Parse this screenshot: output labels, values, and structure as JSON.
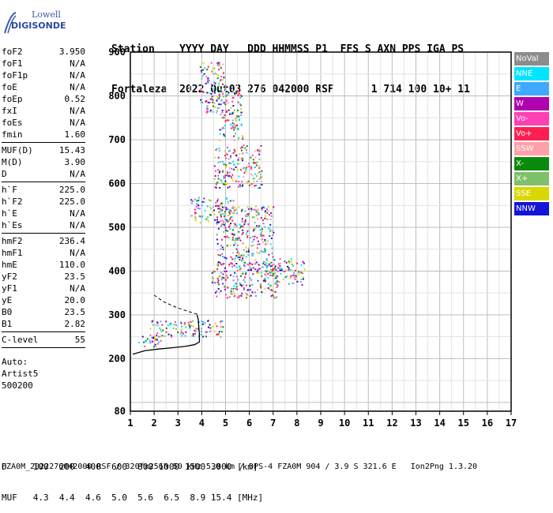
{
  "logo": {
    "line1": "Lowell",
    "line2": "DIGISONDE"
  },
  "header": {
    "line1": "Station    YYYY DAY   DDD HHMMSS P1  FFS S AXN PPS IGA PS",
    "line2": "Fortaleza  2022 Out03 276 042000 RSF      1 714 100 10+ 11"
  },
  "params": {
    "group1": [
      {
        "k": "foF2",
        "v": "3.950"
      },
      {
        "k": "foF1",
        "v": "N/A"
      },
      {
        "k": "foF1p",
        "v": "N/A"
      },
      {
        "k": "foE",
        "v": "N/A"
      },
      {
        "k": "foEp",
        "v": "0.52"
      },
      {
        "k": "fxI",
        "v": "N/A"
      },
      {
        "k": "foEs",
        "v": "N/A"
      },
      {
        "k": "fmin",
        "v": "1.60"
      }
    ],
    "group2": [
      {
        "k": "MUF(D)",
        "v": "15.43"
      },
      {
        "k": "M(D)",
        "v": "3.90"
      },
      {
        "k": "D",
        "v": "N/A"
      }
    ],
    "group3": [
      {
        "k": "h`F",
        "v": "225.0"
      },
      {
        "k": "h`F2",
        "v": "225.0"
      },
      {
        "k": "h`E",
        "v": "N/A"
      },
      {
        "k": "h`Es",
        "v": "N/A"
      }
    ],
    "group4": [
      {
        "k": "hmF2",
        "v": "236.4"
      },
      {
        "k": "hmF1",
        "v": "N/A"
      },
      {
        "k": "hmE",
        "v": "110.0"
      },
      {
        "k": "yF2",
        "v": "23.5"
      },
      {
        "k": "yF1",
        "v": "N/A"
      },
      {
        "k": "yE",
        "v": "20.0"
      },
      {
        "k": "B0",
        "v": "23.5"
      },
      {
        "k": "B1",
        "v": "2.82"
      }
    ],
    "group5": [
      {
        "k": "C-level",
        "v": "55"
      }
    ],
    "auto": [
      "Auto:",
      "Artist5",
      "500200"
    ]
  },
  "legend": [
    {
      "label": "NoVal",
      "color": "#8c8c8c"
    },
    {
      "label": "NNE",
      "color": "#00e5ff"
    },
    {
      "label": "E",
      "color": "#3fa9ff"
    },
    {
      "label": "W",
      "color": "#b000b0"
    },
    {
      "label": "Vo-",
      "color": "#ff3fb4"
    },
    {
      "label": "Vo+",
      "color": "#ff1e50"
    },
    {
      "label": "SSW",
      "color": "#ff9fa8"
    },
    {
      "label": "X-",
      "color": "#0a8a0a"
    },
    {
      "label": "X+",
      "color": "#7fc06a"
    },
    {
      "label": "SSE",
      "color": "#d8d800"
    },
    {
      "label": "NNW",
      "color": "#1414d8"
    }
  ],
  "chart_data": {
    "type": "scatter",
    "xlim": [
      1,
      17
    ],
    "ylim": [
      80,
      900
    ],
    "xticks": [
      "1",
      "2",
      "3",
      "4",
      "5",
      "6",
      "7",
      "8",
      "9",
      "10",
      "11",
      "12",
      "13",
      "14",
      "15",
      "16",
      "17"
    ],
    "yticks": [
      "80",
      "200",
      "300",
      "400",
      "500",
      "600",
      "700",
      "800",
      "900"
    ],
    "ytick_values": [
      80,
      200,
      300,
      400,
      500,
      600,
      700,
      800,
      900
    ],
    "grid": true,
    "trace": {
      "x": [
        1.1,
        1.6,
        2.2,
        2.8,
        3.3,
        3.7,
        3.9,
        3.9,
        3.85,
        3.8
      ],
      "y": [
        210,
        218,
        222,
        225,
        228,
        232,
        238,
        255,
        290,
        300
      ]
    },
    "trace_dashed": {
      "x": [
        2.0,
        2.4,
        2.8,
        3.2,
        3.6,
        3.9
      ],
      "y": [
        345,
        330,
        320,
        312,
        305,
        300
      ]
    },
    "echo_bands": [
      {
        "cx": 3.4,
        "cy": 270,
        "w": 3.2,
        "h": 40
      },
      {
        "cx": 5.8,
        "cy": 380,
        "w": 2.8,
        "h": 80
      },
      {
        "cx": 5.8,
        "cy": 480,
        "w": 2.4,
        "h": 140
      },
      {
        "cx": 5.5,
        "cy": 640,
        "w": 2.0,
        "h": 100
      },
      {
        "cx": 7.4,
        "cy": 400,
        "w": 1.8,
        "h": 60
      },
      {
        "cx": 4.4,
        "cy": 540,
        "w": 1.8,
        "h": 60
      },
      {
        "cx": 4.4,
        "cy": 820,
        "w": 1.0,
        "h": 120
      },
      {
        "cx": 5.2,
        "cy": 760,
        "w": 1.0,
        "h": 120
      },
      {
        "cx": 1.8,
        "cy": 240,
        "w": 1.0,
        "h": 30
      }
    ]
  },
  "footer": {
    "line1": "D     100  200  400  600  800 1000 1500 3000 [km]",
    "line2": "MUF   4.3  4.4  4.6  5.0  5.6  6.5  8.9 15.4 [MHz]",
    "line3": "FZA0M_2022276042000.RSF / 320fx256h 50 kHz 5.0 km / DPS-4 FZA0M 904 / 3.9 S 321.6 E   Ion2Png 1.3.20"
  }
}
